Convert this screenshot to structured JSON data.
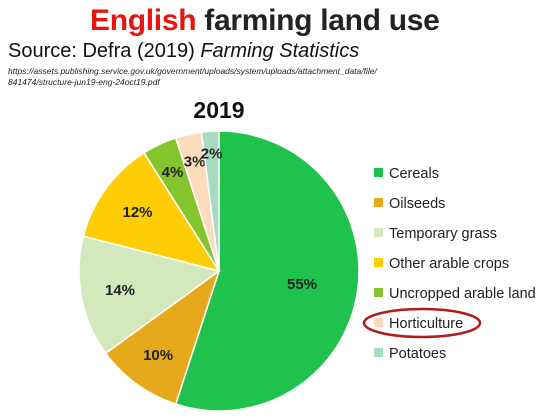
{
  "header": {
    "title_accent": "English",
    "title_rest": " farming land use",
    "source_prefix": "Source: Defra (2019) ",
    "source_italic": "Farming Statistics",
    "url_line1": "https://assets.publishing.service.gov.uk/government/uploads/system/uploads/attachment_data/file/",
    "url_line2": "841474/structure-jun19-eng-24oct19.pdf"
  },
  "chart_data": {
    "type": "pie",
    "title": "2019",
    "slices": [
      {
        "label": "Cereals",
        "value": 55,
        "display": "55%",
        "color": "#1ec24c"
      },
      {
        "label": "Oilseeds",
        "value": 10,
        "display": "10%",
        "color": "#e6a91c"
      },
      {
        "label": "Temporary grass",
        "value": 14,
        "display": "14%",
        "color": "#d4e8bd"
      },
      {
        "label": "Other arable crops",
        "value": 12,
        "display": "12%",
        "color": "#ffcd05"
      },
      {
        "label": "Uncropped arable land",
        "value": 4,
        "display": "4%",
        "color": "#84c42c"
      },
      {
        "label": "Horticulture",
        "value": 3,
        "display": "3%",
        "color": "#fcdcbc"
      },
      {
        "label": "Potatoes",
        "value": 2,
        "display": "2%",
        "color": "#a7dbbf"
      }
    ],
    "legend_position": "right",
    "highlight": {
      "label": "Horticulture",
      "ring_color": "#b01c1c"
    }
  }
}
